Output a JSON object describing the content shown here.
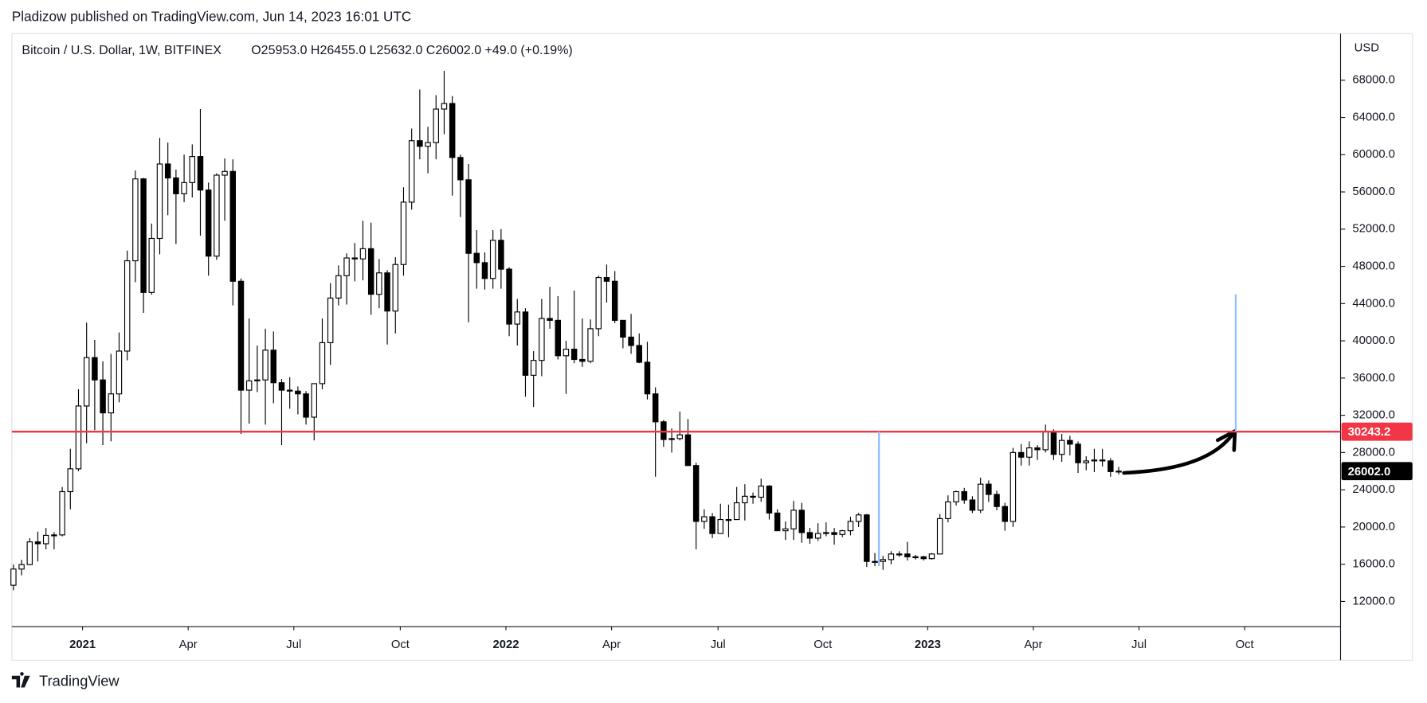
{
  "header": {
    "published": "Pladizow published on TradingView.com, Jun 14, 2023 16:01 UTC"
  },
  "footer": {
    "brand": "TradingView"
  },
  "chart_data": {
    "type": "candlestick",
    "title": "Bitcoin / U.S. Dollar, 1W, BITFINEX",
    "ohlc_legend": "O25953.0  H26455.0  L25632.0  C26002.0  +49.0 (+0.19%)",
    "y_axis_label": "USD",
    "up_color": "#ffffff",
    "down_color": "#000000",
    "border_color": "#000000",
    "open": [
      13740,
      15480,
      15960,
      18400,
      18200,
      19100,
      19150,
      23800,
      26250,
      33000,
      38200,
      35800,
      32260,
      34300,
      38900,
      48600,
      57400,
      45200,
      51000,
      59000,
      57500,
      55800,
      57000,
      59800,
      56200,
      49100,
      57800,
      58200,
      46400,
      34700,
      35700,
      35800,
      39000,
      35500,
      34700,
      34600,
      34300,
      31800,
      35400,
      39800,
      44600,
      47000,
      48900,
      48800,
      49900,
      45000,
      47300,
      43200,
      48200,
      54900,
      61500,
      60900,
      61300,
      64900,
      65500,
      59700,
      57300,
      49400,
      48400,
      46700,
      50800,
      47700,
      41800,
      43100,
      36300,
      37900,
      42400,
      42200,
      38400,
      39100,
      38000,
      37800,
      41300,
      46800,
      46400,
      42200,
      40400,
      39500,
      37700,
      34300,
      31300,
      29400,
      29500,
      29900,
      26600,
      20600,
      21100,
      19300,
      20800,
      20800,
      22600,
      23300,
      23200,
      24400,
      21500,
      19600,
      19800,
      21800,
      19400,
      18800,
      19300,
      19400,
      19200,
      19600,
      20600,
      21300,
      16300,
      16300,
      16500,
      17100,
      17100,
      16800,
      16800,
      16600,
      17100,
      20900,
      22700,
      23800,
      22900,
      21800,
      24600,
      23500,
      22200,
      20600,
      28000,
      27500,
      28500,
      28300,
      30300,
      27800,
      29300,
      28900,
      26900,
      27100,
      27200,
      27100,
      25953
    ],
    "high": [
      15970,
      16480,
      18800,
      19500,
      19900,
      19450,
      24300,
      28400,
      34800,
      41950,
      40100,
      37800,
      38600,
      40900,
      49700,
      58300,
      57500,
      52600,
      61800,
      61300,
      58400,
      60000,
      61100,
      64900,
      57000,
      58000,
      59600,
      59500,
      46700,
      42400,
      39500,
      41300,
      41000,
      35900,
      36100,
      35100,
      34600,
      35400,
      42400,
      46200,
      48100,
      49400,
      50500,
      52900,
      52700,
      48800,
      47600,
      49000,
      56500,
      62800,
      67000,
      63000,
      66400,
      69000,
      66300,
      60000,
      59000,
      51900,
      49500,
      51900,
      52000,
      47900,
      44500,
      43500,
      38900,
      44500,
      45800,
      44800,
      40000,
      45400,
      42400,
      42300,
      47000,
      48200,
      47500,
      42200,
      42900,
      40800,
      39900,
      35000,
      31500,
      30600,
      32400,
      31600,
      26900,
      21900,
      21500,
      22500,
      22400,
      24300,
      24600,
      23700,
      25200,
      24500,
      21900,
      20600,
      22800,
      22600,
      19900,
      20400,
      20500,
      19900,
      19700,
      21100,
      21500,
      21400,
      17200,
      16900,
      17400,
      17400,
      18400,
      17000,
      16900,
      17200,
      21400,
      23400,
      23900,
      24200,
      23300,
      25300,
      25000,
      23900,
      22600,
      28500,
      28900,
      29200,
      28800,
      31000,
      30500,
      30000,
      29800,
      29200,
      27600,
      28400,
      28400,
      27400,
      26455
    ],
    "low": [
      13200,
      14800,
      15900,
      16300,
      17600,
      17600,
      19000,
      21900,
      26000,
      29000,
      30400,
      28800,
      29200,
      33400,
      37900,
      46300,
      43000,
      44950,
      49300,
      53500,
      50400,
      54900,
      55400,
      51300,
      47000,
      48700,
      52900,
      43800,
      30000,
      31100,
      34500,
      31000,
      33300,
      28800,
      32700,
      32100,
      31000,
      29300,
      34800,
      37400,
      43800,
      43900,
      46400,
      46500,
      42800,
      43500,
      39600,
      40800,
      47000,
      54100,
      59500,
      58000,
      59500,
      62200,
      55600,
      53300,
      42000,
      45600,
      45500,
      45600,
      45600,
      40500,
      39500,
      34000,
      32900,
      36200,
      41300,
      38000,
      34300,
      37600,
      37200,
      37600,
      40500,
      44100,
      41900,
      39200,
      38600,
      37600,
      33700,
      25400,
      28600,
      28000,
      29300,
      26600,
      17600,
      19800,
      18800,
      19300,
      18900,
      20800,
      20700,
      22500,
      22700,
      20800,
      19600,
      18600,
      18600,
      18300,
      18200,
      18500,
      19000,
      18100,
      18900,
      19100,
      20000,
      15700,
      15800,
      15400,
      16000,
      16800,
      16400,
      16500,
      16400,
      16500,
      17300,
      20500,
      22300,
      22500,
      21500,
      21500,
      22700,
      21800,
      19600,
      20000,
      26600,
      26600,
      27200,
      28000,
      27200,
      27000,
      27700,
      25800,
      26100,
      25900,
      26500,
      25400,
      25632
    ],
    "close": [
      15480,
      15960,
      18400,
      18200,
      19100,
      19150,
      23800,
      26250,
      33000,
      38200,
      35800,
      32260,
      34300,
      38900,
      48600,
      57400,
      45200,
      51000,
      59000,
      57500,
      55800,
      57000,
      59800,
      56200,
      49100,
      57800,
      58200,
      46400,
      34700,
      35700,
      35800,
      39000,
      35500,
      34700,
      34600,
      34300,
      31800,
      35400,
      39800,
      44600,
      47000,
      48900,
      48800,
      49900,
      45000,
      47300,
      43200,
      48200,
      54900,
      61500,
      60900,
      61300,
      64900,
      65500,
      59700,
      57300,
      49400,
      48400,
      46700,
      50800,
      47700,
      41800,
      43100,
      36300,
      37900,
      42400,
      42200,
      38400,
      39100,
      38000,
      37800,
      41300,
      46800,
      46400,
      42200,
      40400,
      39500,
      37700,
      34300,
      31300,
      29400,
      29500,
      29900,
      26600,
      20600,
      21100,
      19300,
      20800,
      20800,
      22600,
      23300,
      23200,
      24400,
      21500,
      19600,
      19800,
      21800,
      19400,
      18800,
      19300,
      19400,
      19200,
      19600,
      20600,
      21300,
      16300,
      16300,
      16500,
      17100,
      17100,
      16800,
      16800,
      16600,
      17100,
      20900,
      22700,
      23800,
      22900,
      21800,
      24600,
      23500,
      22200,
      20600,
      28000,
      27500,
      28500,
      28300,
      30300,
      27800,
      29300,
      28900,
      26900,
      27100,
      27200,
      27100,
      25953,
      26002
    ],
    "xlim": [
      -0.2,
      163.3
    ],
    "xticks": [
      {
        "value": 8.5,
        "label": "2021"
      },
      {
        "value": 21.5,
        "label": "Apr"
      },
      {
        "value": 34.5,
        "label": "Jul"
      },
      {
        "value": 47.6,
        "label": "Oct"
      },
      {
        "value": 60.6,
        "label": "2022"
      },
      {
        "value": 73.6,
        "label": "Apr"
      },
      {
        "value": 86.7,
        "label": "Jul"
      },
      {
        "value": 99.6,
        "label": "Oct"
      },
      {
        "value": 112.5,
        "label": "2023"
      },
      {
        "value": 125.5,
        "label": "Apr"
      },
      {
        "value": 138.5,
        "label": "Jul"
      },
      {
        "value": 151.5,
        "label": "Oct"
      }
    ],
    "ylim": [
      9300,
      73000
    ],
    "yticks": [
      {
        "value": 12000,
        "label": "12000.0"
      },
      {
        "value": 16000,
        "label": "16000.0"
      },
      {
        "value": 20000,
        "label": "20000.0"
      },
      {
        "value": 24000,
        "label": "24000.0"
      },
      {
        "value": 28000,
        "label": "28000.0"
      },
      {
        "value": 32000,
        "label": "32000.0"
      },
      {
        "value": 36000,
        "label": "36000.0"
      },
      {
        "value": 40000,
        "label": "40000.0"
      },
      {
        "value": 44000,
        "label": "44000.0"
      },
      {
        "value": 48000,
        "label": "48000.0"
      },
      {
        "value": 52000,
        "label": "52000.0"
      },
      {
        "value": 56000,
        "label": "56000.0"
      },
      {
        "value": 60000,
        "label": "60000.0"
      },
      {
        "value": 64000,
        "label": "64000.0"
      },
      {
        "value": 68000,
        "label": "68000.0"
      }
    ],
    "hline": {
      "value": 30243.2,
      "label": "30243.2",
      "color": "#f23645"
    },
    "last_price": {
      "value": 26002,
      "label": "26002.0",
      "color": "#000000"
    },
    "vlines": [
      {
        "x": 106.5,
        "y": [
          30243.2,
          15800
        ],
        "color": "#90bff9"
      },
      {
        "x": 150.4,
        "y": [
          30243.2,
          45000
        ],
        "color": "#90bff9"
      }
    ]
  }
}
